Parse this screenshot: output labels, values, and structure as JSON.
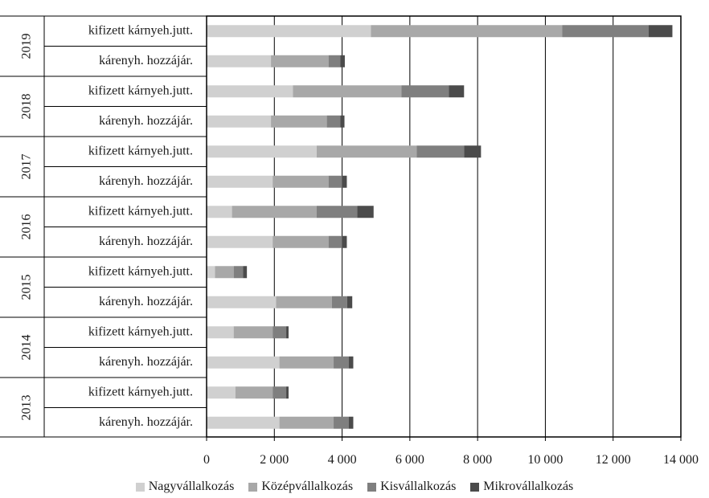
{
  "chart_data": {
    "type": "bar",
    "orientation": "horizontal",
    "stacked": true,
    "xlim": [
      0,
      14000
    ],
    "x_ticks": [
      "0",
      "2 000",
      "4 000",
      "6 000",
      "8 000",
      "10 000",
      "12 000",
      "14 000"
    ],
    "groups": [
      {
        "year": "2019",
        "rows": [
          {
            "label": "kifizett kárnyeh.jutt.",
            "values": [
              4850,
              5650,
              2550,
              700
            ]
          },
          {
            "label": "kárenyh. hozzájár.",
            "values": [
              1900,
              1700,
              350,
              130
            ]
          }
        ]
      },
      {
        "year": "2018",
        "rows": [
          {
            "label": "kifizett kárnyeh.jutt.",
            "values": [
              2550,
              3200,
              1400,
              450
            ]
          },
          {
            "label": "kárenyh. hozzájár.",
            "values": [
              1900,
              1650,
              400,
              120
            ]
          }
        ]
      },
      {
        "year": "2017",
        "rows": [
          {
            "label": "kifizett kárnyeh.jutt.",
            "values": [
              3250,
              2950,
              1400,
              500
            ]
          },
          {
            "label": "kárenyh. hozzájár.",
            "values": [
              1950,
              1650,
              400,
              140
            ]
          }
        ]
      },
      {
        "year": "2016",
        "rows": [
          {
            "label": "kifizett kárnyeh.jutt.",
            "values": [
              750,
              2500,
              1200,
              480
            ]
          },
          {
            "label": "kárenyh. hozzájár.",
            "values": [
              1950,
              1650,
              400,
              140
            ]
          }
        ]
      },
      {
        "year": "2015",
        "rows": [
          {
            "label": "kifizett kárnyeh.jutt.",
            "values": [
              250,
              550,
              280,
              110
            ]
          },
          {
            "label": "kárenyh. hozzájár.",
            "values": [
              2050,
              1650,
              450,
              150
            ]
          }
        ]
      },
      {
        "year": "2014",
        "rows": [
          {
            "label": "kifizett kárnyeh.jutt.",
            "values": [
              800,
              1150,
              400,
              70
            ]
          },
          {
            "label": "kárenyh. hozzájár.",
            "values": [
              2150,
              1600,
              450,
              130
            ]
          }
        ]
      },
      {
        "year": "2013",
        "rows": [
          {
            "label": "kifizett kárnyeh.jutt.",
            "values": [
              850,
              1100,
              400,
              70
            ]
          },
          {
            "label": "kárenyh. hozzájár.",
            "values": [
              2150,
              1600,
              450,
              130
            ]
          }
        ]
      }
    ],
    "series": [
      {
        "name": "Nagyvállalkozás",
        "color": "#d0d0d0"
      },
      {
        "name": "Középvállalkozás",
        "color": "#a8a8a8"
      },
      {
        "name": "Kisvállalkozás",
        "color": "#7f7f7f"
      },
      {
        "name": "Mikrovállalkozás",
        "color": "#4b4b4b"
      }
    ],
    "grid": {
      "vertical": true,
      "color": "#000000"
    },
    "legend": "bottom"
  }
}
